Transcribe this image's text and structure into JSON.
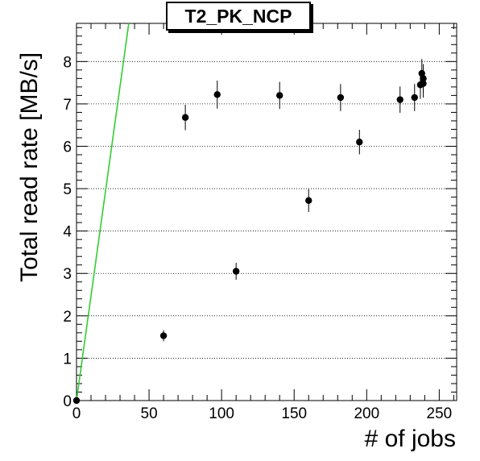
{
  "chart_data": {
    "type": "scatter",
    "title": "T2_PK_NCP",
    "xlabel": "# of jobs",
    "ylabel": "Total read rate [MB/s]",
    "xlim": [
      0,
      262
    ],
    "ylim": [
      0,
      8.9
    ],
    "xticks": [
      0,
      50,
      100,
      150,
      200,
      250
    ],
    "yticks": [
      0,
      1,
      2,
      3,
      4,
      5,
      6,
      7,
      8
    ],
    "grid": "horizontal dotted",
    "series": [
      {
        "marker": "circle",
        "color": "#000000",
        "points": [
          {
            "x": 0,
            "y": 0.0,
            "err": 0.0
          },
          {
            "x": 60,
            "y": 1.53,
            "err": 0.13
          },
          {
            "x": 75,
            "y": 6.68,
            "err": 0.3
          },
          {
            "x": 97,
            "y": 7.22,
            "err": 0.33
          },
          {
            "x": 110,
            "y": 3.05,
            "err": 0.2
          },
          {
            "x": 140,
            "y": 7.2,
            "err": 0.32
          },
          {
            "x": 160,
            "y": 4.72,
            "err": 0.27
          },
          {
            "x": 182,
            "y": 7.15,
            "err": 0.32
          },
          {
            "x": 195,
            "y": 6.1,
            "err": 0.29
          },
          {
            "x": 223,
            "y": 7.1,
            "err": 0.31
          },
          {
            "x": 233,
            "y": 7.15,
            "err": 0.32
          },
          {
            "x": 237,
            "y": 7.45,
            "err": 0.33
          },
          {
            "x": 238,
            "y": 7.72,
            "err": 0.34
          },
          {
            "x": 239,
            "y": 7.6,
            "err": 0.34
          },
          {
            "x": 239,
            "y": 7.48,
            "err": 0.33
          }
        ]
      },
      {
        "type": "line",
        "color": "#33cc33",
        "x": [
          0,
          36
        ],
        "y": [
          0,
          8.9
        ]
      }
    ]
  }
}
